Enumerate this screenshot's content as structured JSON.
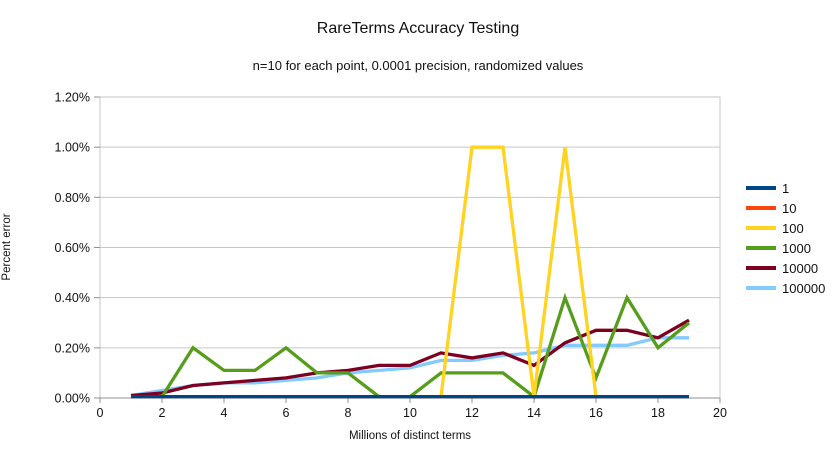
{
  "title": "RareTerms Accuracy Testing",
  "subtitle": "n=10 for each point, 0.0001 precision, randomized values",
  "chart_data": {
    "type": "line",
    "title": "RareTerms Accuracy Testing",
    "subtitle": "n=10 for each point, 0.0001 precision, randomized values",
    "xlabel": "Millions of distinct terms",
    "ylabel": "Percent error",
    "xlim": [
      0,
      20
    ],
    "ylim": [
      0,
      1.2
    ],
    "grid": "horizontal",
    "legend_position": "right",
    "x_ticks": [
      0,
      2,
      4,
      6,
      8,
      10,
      12,
      14,
      16,
      18,
      20
    ],
    "y_ticks": [
      0,
      0.2,
      0.4,
      0.6,
      0.8,
      1.0,
      1.2
    ],
    "y_tick_labels": [
      "0.00%",
      "0.20%",
      "0.40%",
      "0.60%",
      "0.80%",
      "1.00%",
      "1.20%"
    ],
    "x": [
      1,
      2,
      3,
      4,
      5,
      6,
      7,
      8,
      9,
      10,
      11,
      12,
      13,
      14,
      15,
      16,
      17,
      18,
      19
    ],
    "series": [
      {
        "name": "1",
        "color": "#004586",
        "values": [
          0.005,
          0.005,
          0.005,
          0.005,
          0.005,
          0.005,
          0.005,
          0.005,
          0.005,
          0.005,
          0.005,
          0.005,
          0.005,
          0.005,
          0.005,
          0.005,
          0.005,
          0.005,
          0.005
        ]
      },
      {
        "name": "10",
        "color": "#FF420E",
        "values": [
          0.005,
          0.005,
          0.005,
          0.005,
          0.005,
          0.005,
          0.005,
          0.005,
          0.005,
          0.005,
          0.005,
          0.005,
          0.005,
          0.005,
          0.005,
          0.005,
          0.005,
          0.005,
          0.005
        ]
      },
      {
        "name": "100",
        "color": "#FFD320",
        "values": [
          0.005,
          0.005,
          0.005,
          0.005,
          0.005,
          0.005,
          0.005,
          0.005,
          0.005,
          0.005,
          0.005,
          1.0,
          1.0,
          0.005,
          1.0,
          0.005,
          0.005,
          0.005,
          0.005
        ]
      },
      {
        "name": "1000",
        "color": "#579D1C",
        "values": [
          0.005,
          0.005,
          0.2,
          0.11,
          0.11,
          0.2,
          0.1,
          0.1,
          0.005,
          0.005,
          0.1,
          0.1,
          0.1,
          0.005,
          0.4,
          0.08,
          0.4,
          0.2,
          0.3
        ]
      },
      {
        "name": "10000",
        "color": "#7E0021",
        "values": [
          0.01,
          0.02,
          0.05,
          0.06,
          0.07,
          0.08,
          0.1,
          0.11,
          0.13,
          0.13,
          0.18,
          0.16,
          0.18,
          0.13,
          0.22,
          0.27,
          0.27,
          0.24,
          0.31
        ]
      },
      {
        "name": "100000",
        "color": "#83CAFF",
        "values": [
          0.01,
          0.03,
          0.05,
          0.06,
          0.06,
          0.07,
          0.08,
          0.1,
          0.11,
          0.12,
          0.15,
          0.15,
          0.17,
          0.18,
          0.21,
          0.21,
          0.21,
          0.24,
          0.24
        ]
      }
    ]
  },
  "colors": {
    "background": "#ffffff",
    "grid": "#c6c6c6",
    "axis": "#919191",
    "text": "#111111"
  }
}
